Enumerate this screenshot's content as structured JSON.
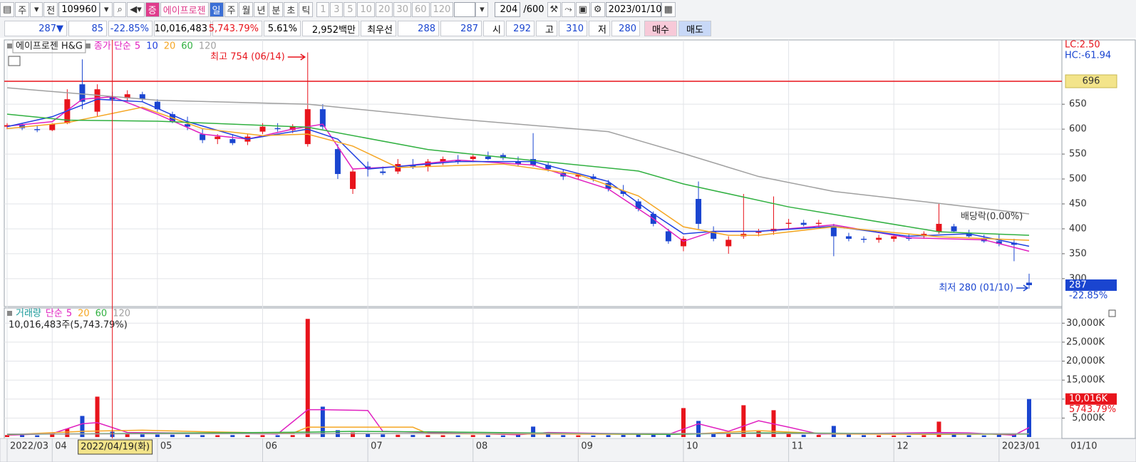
{
  "toolbar": {
    "type_btn": "주",
    "scope": "전",
    "code": "109960",
    "market_tag": "증",
    "name": "에이프로젠",
    "periods": [
      "일",
      "주",
      "월",
      "년",
      "분",
      "초",
      "틱"
    ],
    "intervals": [
      "1",
      "3",
      "5",
      "10",
      "20",
      "30",
      "60",
      "120"
    ],
    "count": "204",
    "max_count": "/600",
    "date": "2023/01/10"
  },
  "info_bar": {
    "price": "287▼",
    "change": "85",
    "change_rate": "-22.85%",
    "volume": "10,016,483",
    "volume_rate": "5,743.79%",
    "turnover": "5.61%",
    "amount": "2,952백만",
    "best_label": "최우선",
    "best_ask": "288",
    "best_bid": "287",
    "open_label": "시",
    "open": "292",
    "high_label": "고",
    "high": "310",
    "low_label": "저",
    "low": "280",
    "buy": "매수",
    "sell": "매도"
  },
  "chart_data": [
    {
      "type": "candlestick",
      "title": "에이프로젠 H&G",
      "legend_prefix": "종가 단순",
      "categories": [
        "2022/03",
        null,
        null,
        "04",
        null,
        null,
        null,
        "2022/04/19(화)",
        null,
        null,
        "05",
        null,
        null,
        null,
        null,
        null,
        null,
        "06",
        null,
        null,
        null,
        null,
        null,
        null,
        "07",
        null,
        null,
        null,
        null,
        null,
        null,
        "08",
        null,
        null,
        null,
        null,
        null,
        null,
        "09",
        null,
        null,
        null,
        null,
        null,
        null,
        "10",
        null,
        null,
        null,
        null,
        null,
        null,
        "11",
        null,
        null,
        null,
        null,
        null,
        null,
        "12",
        null,
        null,
        null,
        null,
        null,
        null,
        "2023/01",
        null,
        null
      ],
      "crosshair_index": 7,
      "axis_date": "01/10",
      "open": [
        605,
        608,
        600,
        598,
        612,
        690,
        635,
        665,
        662,
        670,
        655,
        630,
        610,
        590,
        580,
        580,
        575,
        595,
        602,
        598,
        570,
        640,
        560,
        480,
        525,
        515,
        515,
        528,
        525,
        535,
        538,
        540,
        545,
        548,
        535,
        540,
        528,
        512,
        505,
        505,
        492,
        475,
        455,
        430,
        395,
        365,
        460,
        395,
        365,
        385,
        392,
        395,
        410,
        412,
        410,
        405,
        385,
        380,
        378,
        380,
        382,
        385,
        395,
        405,
        392,
        380,
        375,
        372,
        292
      ],
      "high": [
        612,
        612,
        606,
        612,
        680,
        740,
        690,
        675,
        678,
        675,
        660,
        635,
        625,
        600,
        590,
        590,
        590,
        612,
        612,
        610,
        754,
        650,
        570,
        520,
        535,
        525,
        540,
        540,
        540,
        545,
        548,
        550,
        555,
        552,
        545,
        592,
        535,
        520,
        512,
        510,
        498,
        488,
        460,
        435,
        400,
        385,
        495,
        405,
        385,
        470,
        400,
        465,
        420,
        418,
        418,
        410,
        392,
        385,
        388,
        390,
        390,
        395,
        452,
        410,
        398,
        388,
        390,
        380,
        310
      ],
      "low": [
        600,
        598,
        594,
        596,
        610,
        640,
        625,
        650,
        655,
        655,
        635,
        612,
        598,
        572,
        570,
        568,
        568,
        590,
        595,
        592,
        565,
        600,
        500,
        470,
        505,
        508,
        510,
        520,
        515,
        528,
        530,
        535,
        538,
        538,
        525,
        525,
        515,
        498,
        498,
        495,
        475,
        465,
        435,
        405,
        370,
        355,
        400,
        375,
        350,
        380,
        385,
        388,
        400,
        405,
        402,
        345,
        375,
        372,
        372,
        374,
        376,
        380,
        390,
        392,
        382,
        372,
        365,
        335,
        280
      ],
      "close": [
        608,
        602,
        598,
        610,
        660,
        655,
        680,
        660,
        670,
        660,
        640,
        615,
        605,
        578,
        585,
        572,
        585,
        605,
        600,
        606,
        640,
        605,
        510,
        515,
        520,
        512,
        530,
        525,
        535,
        540,
        535,
        545,
        540,
        542,
        530,
        528,
        520,
        505,
        508,
        500,
        480,
        470,
        440,
        410,
        375,
        380,
        410,
        380,
        378,
        390,
        395,
        400,
        412,
        408,
        412,
        385,
        380,
        378,
        382,
        385,
        380,
        390,
        410,
        395,
        385,
        375,
        370,
        368,
        287
      ],
      "up_color": "#e8141c",
      "down_color": "#1a45d0",
      "ylim": [
        244,
        779
      ],
      "yticks": [
        300,
        350,
        400,
        450,
        500,
        550,
        600,
        650
      ],
      "grid": true,
      "ma_series": [
        {
          "name": "5",
          "color": "#e020c0",
          "x": [
            0,
            3,
            5,
            7,
            10,
            13,
            16,
            19,
            21,
            23,
            26,
            30,
            35,
            40,
            43,
            45,
            47,
            50,
            55,
            60,
            65,
            68
          ],
          "values": [
            606,
            615,
            660,
            665,
            630,
            590,
            580,
            600,
            610,
            520,
            525,
            538,
            528,
            480,
            420,
            375,
            395,
            395,
            408,
            382,
            378,
            355
          ]
        },
        {
          "name": "10",
          "color": "#2040e0",
          "x": [
            0,
            3,
            6,
            9,
            12,
            16,
            20,
            22,
            24,
            30,
            35,
            40,
            43,
            45,
            47,
            50,
            55,
            60,
            64,
            68
          ],
          "values": [
            605,
            625,
            660,
            655,
            615,
            580,
            600,
            580,
            520,
            535,
            535,
            495,
            430,
            390,
            395,
            395,
            405,
            385,
            390,
            365
          ]
        },
        {
          "name": "20",
          "color": "#f5a623",
          "x": [
            0,
            4,
            9,
            13,
            17,
            20,
            23,
            26,
            33,
            38,
            42,
            45,
            48,
            50,
            55,
            62,
            68
          ],
          "values": [
            601,
            613,
            644,
            601,
            587,
            590,
            566,
            523,
            530,
            509,
            466,
            404,
            387,
            387,
            404,
            384,
            377
          ]
        },
        {
          "name": "60",
          "color": "#30b040",
          "x": [
            0,
            4,
            10,
            20,
            28,
            35,
            42,
            45,
            52,
            62,
            68
          ],
          "values": [
            630,
            618,
            616,
            604,
            559,
            537,
            516,
            490,
            444,
            394,
            387
          ]
        },
        {
          "name": "120",
          "color": "#a0a0a0",
          "x": [
            0,
            10,
            20,
            30,
            40,
            45,
            50,
            55,
            62,
            68
          ],
          "values": [
            683,
            658,
            650,
            620,
            595,
            551,
            505,
            475,
            451,
            430
          ]
        }
      ],
      "ref_line": 696,
      "ref_color": "#e8141c",
      "current_price": 287,
      "current_change": "-22.85%",
      "annotations": {
        "high": "최고 754 (06/14)",
        "low": "최저 280 (01/10)",
        "dividend": "배당락(0.00%)",
        "lc": "LC:2.50",
        "hc": "HC:-61.94"
      }
    },
    {
      "type": "bar",
      "title": "거래량",
      "legend_prefix": "단순",
      "summary": "10,016,483주(5,743.79%)",
      "values": [
        520,
        480,
        450,
        700,
        2180,
        5560,
        10640,
        1400,
        900,
        700,
        650,
        600,
        550,
        500,
        480,
        520,
        450,
        500,
        480,
        520,
        31130,
        8000,
        1800,
        1200,
        900,
        700,
        600,
        550,
        500,
        480,
        450,
        520,
        470,
        440,
        600,
        2750,
        700,
        500,
        450,
        420,
        500,
        550,
        650,
        800,
        900,
        7630,
        4250,
        1200,
        900,
        8380,
        1500,
        7070,
        1000,
        600,
        550,
        2930,
        700,
        500,
        450,
        420,
        400,
        500,
        4060,
        900,
        500,
        450,
        600,
        800,
        10016
      ],
      "last_label": "10,016K",
      "last_rate": "5743.79%",
      "ylim": [
        0,
        34000
      ],
      "yticks": [
        {
          "value": 5000,
          "label": "5,000K"
        },
        {
          "value": 10000,
          "label": "10,000K"
        },
        {
          "value": 15000,
          "label": "15,000K"
        },
        {
          "value": 20000,
          "label": "20,000K"
        },
        {
          "value": 25000,
          "label": "25,000K"
        },
        {
          "value": 30000,
          "label": "30,000K"
        }
      ],
      "grid": true,
      "ma_series": [
        {
          "name": "5",
          "color": "#e020c0",
          "x": [
            0,
            3,
            5,
            6,
            8,
            18,
            20,
            21,
            24,
            25,
            34,
            36,
            44,
            46,
            48,
            50,
            52,
            54,
            62,
            64,
            67,
            68
          ],
          "values": [
            500,
            900,
            3500,
            3800,
            1200,
            800,
            7200,
            7200,
            7000,
            1500,
            600,
            1200,
            700,
            3500,
            1500,
            4300,
            2600,
            800,
            1200,
            1100,
            500,
            2500
          ]
        },
        {
          "name": "20",
          "color": "#f5a623",
          "x": [
            0,
            5,
            9,
            13,
            19,
            20,
            27,
            28,
            44,
            46,
            50,
            55,
            62,
            68
          ],
          "values": [
            600,
            1500,
            1800,
            1400,
            1000,
            2600,
            2600,
            900,
            700,
            900,
            1700,
            800,
            700,
            800
          ]
        },
        {
          "name": "60",
          "color": "#30b040",
          "x": [
            0,
            20,
            23,
            30,
            44,
            50,
            60,
            68
          ],
          "values": [
            700,
            1300,
            1500,
            1300,
            700,
            1100,
            900,
            800
          ]
        },
        {
          "name": "120",
          "color": "#a0a0a0",
          "x": [
            0,
            30,
            68
          ],
          "values": [
            800,
            950,
            900
          ]
        }
      ]
    }
  ]
}
